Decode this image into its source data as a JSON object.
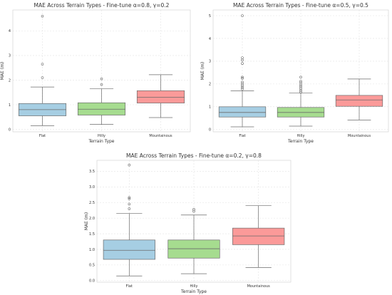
{
  "colors": {
    "flat": "#a6cee3",
    "hilly": "#a6dc8f",
    "mountainous": "#fb9a99",
    "line": "#6b6b6b"
  },
  "chart_data": [
    {
      "type": "box",
      "title": "MAE Across Terrain Types - Fine-tune α=0.8, γ=0.2",
      "xlabel": "Terrain Type",
      "ylabel": "MAE (m)",
      "ylim": [
        -0.1,
        4.85
      ],
      "yticks": [
        {
          "v": 0,
          "label": "0"
        },
        {
          "v": 1,
          "label": "1"
        },
        {
          "v": 2,
          "label": "2"
        },
        {
          "v": 3,
          "label": "3"
        },
        {
          "v": 4,
          "label": "4"
        }
      ],
      "categories": [
        "Flat",
        "Hilly",
        "Mountainous"
      ],
      "boxes": [
        {
          "name": "Flat",
          "whisker_low": 0.15,
          "q1": 0.55,
          "median": 0.8,
          "q3": 1.05,
          "whisker_high": 1.72,
          "outliers": [
            2.1,
            2.65,
            4.6
          ]
        },
        {
          "name": "Hilly",
          "whisker_low": 0.2,
          "q1": 0.58,
          "median": 0.82,
          "q3": 1.08,
          "whisker_high": 1.65,
          "outliers": [
            1.82,
            2.05
          ]
        },
        {
          "name": "Mountainous",
          "whisker_low": 0.48,
          "q1": 1.07,
          "median": 1.3,
          "q3": 1.57,
          "whisker_high": 2.22,
          "outliers": []
        }
      ]
    },
    {
      "type": "box",
      "title": "MAE Across Terrain Types - Fine-tune α=0.5, γ=0.5",
      "xlabel": "Terrain Type",
      "ylabel": "MAE (m)",
      "ylim": [
        -0.1,
        5.25
      ],
      "yticks": [
        {
          "v": 0,
          "label": "0"
        },
        {
          "v": 1,
          "label": "1"
        },
        {
          "v": 2,
          "label": "2"
        },
        {
          "v": 3,
          "label": "3"
        },
        {
          "v": 4,
          "label": "4"
        },
        {
          "v": 5,
          "label": "5"
        }
      ],
      "categories": [
        "Flat",
        "Hilly",
        "Mountainous"
      ],
      "boxes": [
        {
          "name": "Flat",
          "whisker_low": 0.12,
          "q1": 0.55,
          "median": 0.75,
          "q3": 1.0,
          "whisker_high": 1.7,
          "outliers": [
            1.78,
            1.85,
            1.92,
            2.0,
            2.08,
            2.25,
            2.3,
            2.9,
            3.05,
            3.15,
            5.0
          ]
        },
        {
          "name": "Hilly",
          "whisker_low": 0.15,
          "q1": 0.55,
          "median": 0.75,
          "q3": 0.97,
          "whisker_high": 1.6,
          "outliers": [
            1.65,
            1.72,
            1.8,
            1.88,
            1.95,
            2.05,
            2.12,
            2.3
          ]
        },
        {
          "name": "Mountainous",
          "whisker_low": 0.42,
          "q1": 1.02,
          "median": 1.3,
          "q3": 1.5,
          "whisker_high": 2.22,
          "outliers": []
        }
      ]
    },
    {
      "type": "box",
      "title": "MAE Across Terrain Types - Fine-tune α=0.2, γ=0.8",
      "xlabel": "Terrain Type",
      "ylabel": "MAE (m)",
      "ylim": [
        -0.05,
        3.85
      ],
      "yticks": [
        {
          "v": 0,
          "label": "0.0"
        },
        {
          "v": 0.5,
          "label": "0.5"
        },
        {
          "v": 1,
          "label": "1.0"
        },
        {
          "v": 1.5,
          "label": "1.5"
        },
        {
          "v": 2,
          "label": "2.0"
        },
        {
          "v": 2.5,
          "label": "2.5"
        },
        {
          "v": 3,
          "label": "3.0"
        },
        {
          "v": 3.5,
          "label": "3.5"
        }
      ],
      "categories": [
        "Flat",
        "Hilly",
        "Mountainous"
      ],
      "boxes": [
        {
          "name": "Flat",
          "whisker_low": 0.15,
          "q1": 0.68,
          "median": 0.97,
          "q3": 1.3,
          "whisker_high": 2.15,
          "outliers": [
            2.3,
            2.45,
            2.62,
            2.66,
            3.7
          ]
        },
        {
          "name": "Hilly",
          "whisker_low": 0.22,
          "q1": 0.72,
          "median": 1.02,
          "q3": 1.3,
          "whisker_high": 2.1,
          "outliers": [
            2.22,
            2.28
          ]
        },
        {
          "name": "Mountainous",
          "whisker_low": 0.42,
          "q1": 1.15,
          "median": 1.43,
          "q3": 1.68,
          "whisker_high": 2.4,
          "outliers": []
        }
      ]
    }
  ]
}
